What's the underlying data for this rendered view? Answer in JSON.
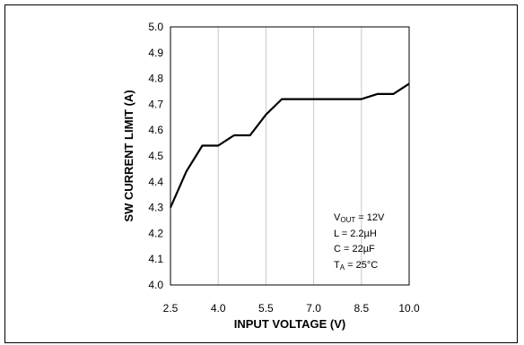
{
  "chart_data": {
    "type": "line",
    "title": "",
    "xlabel": "INPUT VOLTAGE (V)",
    "ylabel": "SW CURRENT LIMIT (A)",
    "xlim": [
      2.5,
      10.0
    ],
    "ylim": [
      4.0,
      5.0
    ],
    "x_ticks": [
      "2.5",
      "4.0",
      "5.5",
      "7.0",
      "8.5",
      "10.0"
    ],
    "y_ticks": [
      "4.0",
      "4.1",
      "4.2",
      "4.3",
      "4.4",
      "4.5",
      "4.6",
      "4.7",
      "4.8",
      "4.9",
      "5.0"
    ],
    "grid": "vertical lines at x ticks",
    "series": [
      {
        "x": [
          2.5,
          3.0,
          3.5,
          4.0,
          4.5,
          5.0,
          5.5,
          6.0,
          6.5,
          7.0,
          7.5,
          8.0,
          8.5,
          9.0,
          9.5,
          10.0
        ],
        "y": [
          4.3,
          4.44,
          4.54,
          4.54,
          4.58,
          4.58,
          4.66,
          4.72,
          4.72,
          4.72,
          4.72,
          4.72,
          4.72,
          4.74,
          4.74,
          4.78
        ]
      }
    ],
    "annotations": {
      "vout": {
        "symbol": "V",
        "subscript": "OUT",
        "value": " = 12V"
      },
      "inductance": "L = 2.2µH",
      "capacitance": "C = 22µF",
      "temperature": {
        "symbol": "T",
        "subscript": "A",
        "value": " = 25°C"
      }
    },
    "line_color": "#000000",
    "grid_color": "#c8c8c8"
  }
}
